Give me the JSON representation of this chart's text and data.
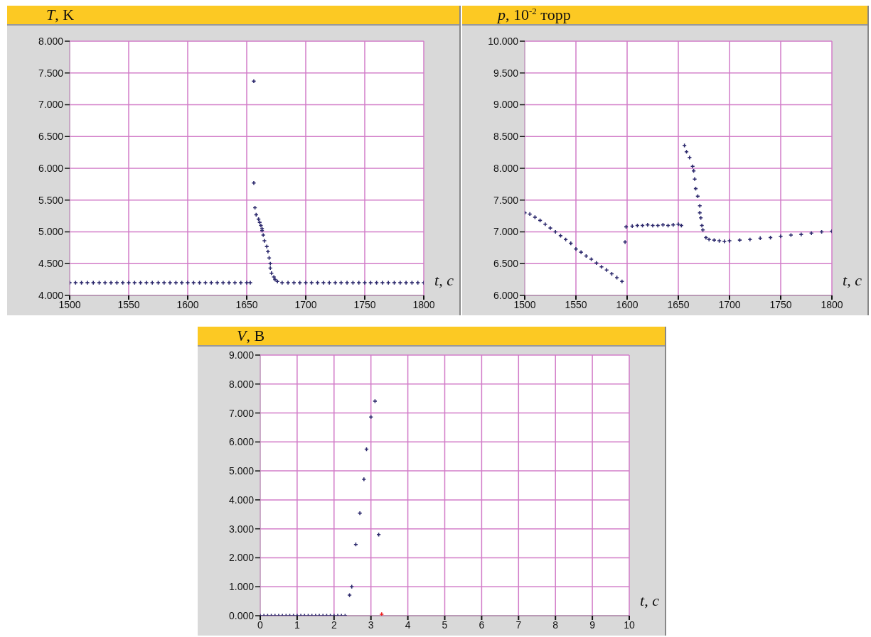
{
  "chart_data": [
    {
      "type": "scatter",
      "title": "T, K",
      "xlabel": "t, c",
      "marker": "cross",
      "grid": true,
      "legend": false,
      "xlim": [
        1500,
        1800
      ],
      "xticks": [
        1500,
        1550,
        1600,
        1650,
        1700,
        1750,
        1800
      ],
      "ylim": [
        4,
        8
      ],
      "yticks": [
        {
          "value": 4,
          "label": "4.000"
        },
        {
          "value": 4.5,
          "label": "4.500"
        },
        {
          "value": 5,
          "label": "5.000"
        },
        {
          "value": 5.5,
          "label": "5.500"
        },
        {
          "value": 6,
          "label": "6.000"
        },
        {
          "value": 6.5,
          "label": "6.500"
        },
        {
          "value": 7,
          "label": "7.000"
        },
        {
          "value": 7.5,
          "label": "7.500"
        },
        {
          "value": 8,
          "label": "8.000"
        }
      ],
      "series": [
        {
          "color": "#2e2b6e",
          "x": [
            1500,
            1505,
            1510,
            1515,
            1520,
            1525,
            1530,
            1535,
            1540,
            1545,
            1550,
            1555,
            1560,
            1565,
            1570,
            1575,
            1580,
            1585,
            1590,
            1595,
            1600,
            1605,
            1610,
            1615,
            1620,
            1625,
            1630,
            1635,
            1640,
            1645,
            1650,
            1653,
            1656,
            1656,
            1657,
            1658,
            1660,
            1661,
            1662,
            1663,
            1663,
            1664,
            1665,
            1667,
            1668,
            1669,
            1670,
            1670,
            1671,
            1673,
            1674,
            1676,
            1680,
            1685,
            1690,
            1695,
            1700,
            1705,
            1710,
            1715,
            1720,
            1725,
            1730,
            1735,
            1740,
            1745,
            1750,
            1755,
            1760,
            1765,
            1770,
            1775,
            1780,
            1785,
            1790,
            1795,
            1800
          ],
          "values": [
            4.2,
            4.2,
            4.2,
            4.2,
            4.2,
            4.2,
            4.2,
            4.2,
            4.2,
            4.2,
            4.2,
            4.2,
            4.2,
            4.2,
            4.2,
            4.2,
            4.2,
            4.2,
            4.2,
            4.2,
            4.2,
            4.2,
            4.2,
            4.2,
            4.2,
            4.2,
            4.2,
            4.2,
            4.2,
            4.2,
            4.2,
            4.2,
            7.37,
            5.77,
            5.38,
            5.27,
            5.2,
            5.15,
            5.1,
            5.05,
            5.02,
            4.95,
            4.86,
            4.77,
            4.69,
            4.59,
            4.5,
            4.43,
            4.35,
            4.29,
            4.25,
            4.22,
            4.2,
            4.2,
            4.2,
            4.2,
            4.2,
            4.2,
            4.2,
            4.2,
            4.2,
            4.2,
            4.2,
            4.2,
            4.2,
            4.2,
            4.2,
            4.2,
            4.2,
            4.2,
            4.2,
            4.2,
            4.2,
            4.2,
            4.2,
            4.2,
            4.2
          ]
        }
      ]
    },
    {
      "type": "scatter",
      "title": "p, 10$^{-2}$ торр",
      "xlabel": "t, c",
      "marker": "cross",
      "grid": true,
      "legend": false,
      "xlim": [
        1500,
        1800
      ],
      "xticks": [
        1500,
        1550,
        1600,
        1650,
        1700,
        1750,
        1800
      ],
      "ylim": [
        6,
        10
      ],
      "yticks": [
        {
          "value": 6,
          "label": "6.000"
        },
        {
          "value": 6.5,
          "label": "6.500"
        },
        {
          "value": 7,
          "label": "7.000"
        },
        {
          "value": 7.5,
          "label": "7.500"
        },
        {
          "value": 8,
          "label": "8.000"
        },
        {
          "value": 8.5,
          "label": "8.500"
        },
        {
          "value": 9,
          "label": "9.000"
        },
        {
          "value": 9.5,
          "label": "9.500"
        },
        {
          "value": 10,
          "label": "10.000"
        }
      ],
      "series": [
        {
          "color": "#2e2b6e",
          "x": [
            1500,
            1505,
            1510,
            1515,
            1520,
            1525,
            1530,
            1535,
            1540,
            1545,
            1550,
            1555,
            1560,
            1565,
            1570,
            1575,
            1580,
            1585,
            1590,
            1595,
            1598,
            1599,
            1605,
            1610,
            1615,
            1620,
            1625,
            1630,
            1635,
            1640,
            1645,
            1650,
            1653,
            1656,
            1658,
            1661,
            1664,
            1665,
            1666,
            1667,
            1669,
            1671,
            1671,
            1672,
            1673,
            1674,
            1677,
            1680,
            1685,
            1690,
            1695,
            1700,
            1710,
            1720,
            1730,
            1740,
            1750,
            1760,
            1770,
            1780,
            1790,
            1800
          ],
          "values": [
            7.3,
            7.28,
            7.23,
            7.18,
            7.12,
            7.06,
            7.0,
            6.94,
            6.88,
            6.82,
            6.73,
            6.68,
            6.62,
            6.57,
            6.51,
            6.45,
            6.4,
            6.34,
            6.28,
            6.22,
            6.84,
            7.08,
            7.09,
            7.1,
            7.1,
            7.11,
            7.1,
            7.1,
            7.11,
            7.1,
            7.11,
            7.12,
            7.1,
            8.36,
            8.26,
            8.17,
            8.03,
            7.96,
            7.83,
            7.68,
            7.56,
            7.41,
            7.3,
            7.22,
            7.1,
            7.03,
            6.91,
            6.88,
            6.87,
            6.86,
            6.85,
            6.86,
            6.87,
            6.88,
            6.9,
            6.91,
            6.93,
            6.95,
            6.96,
            6.98,
            7.0,
            7.01
          ]
        }
      ]
    },
    {
      "type": "scatter",
      "title": "V, B",
      "xlabel": "t, c",
      "marker": "cross",
      "grid": true,
      "legend": false,
      "xlim": [
        0,
        10
      ],
      "xticks": [
        0,
        1,
        2,
        3,
        4,
        5,
        6,
        7,
        8,
        9,
        10
      ],
      "ylim": [
        0,
        9
      ],
      "yticks": [
        {
          "value": 0,
          "label": "0.000"
        },
        {
          "value": 1,
          "label": "1.000"
        },
        {
          "value": 2,
          "label": "2.000"
        },
        {
          "value": 3,
          "label": "3.000"
        },
        {
          "value": 4,
          "label": "4.000"
        },
        {
          "value": 5,
          "label": "5.000"
        },
        {
          "value": 6,
          "label": "6.000"
        },
        {
          "value": 7,
          "label": "7.000"
        },
        {
          "value": 8,
          "label": "8.000"
        },
        {
          "value": 9,
          "label": "9.000"
        }
      ],
      "series": [
        {
          "color": "#2e2b6e",
          "x": [
            0,
            0.1,
            0.2,
            0.3,
            0.4,
            0.5,
            0.6,
            0.7,
            0.8,
            0.9,
            1.0,
            1.1,
            1.2,
            1.3,
            1.4,
            1.5,
            1.6,
            1.7,
            1.8,
            1.9,
            2.0,
            2.1,
            2.2,
            2.3,
            2.42,
            2.48,
            2.59,
            2.7,
            2.81,
            2.88,
            3.0,
            3.11,
            3.21
          ],
          "values": [
            0,
            0,
            0,
            0,
            0,
            0,
            0,
            0,
            0,
            0,
            0,
            0,
            0,
            0,
            0,
            0,
            0,
            0,
            0,
            0,
            0,
            0,
            0,
            0,
            0.71,
            1.0,
            2.46,
            3.54,
            4.71,
            5.75,
            6.86,
            7.41,
            2.8
          ]
        },
        {
          "color": "#ee2222",
          "x": [
            3.29
          ],
          "values": [
            0.05
          ]
        }
      ]
    }
  ]
}
